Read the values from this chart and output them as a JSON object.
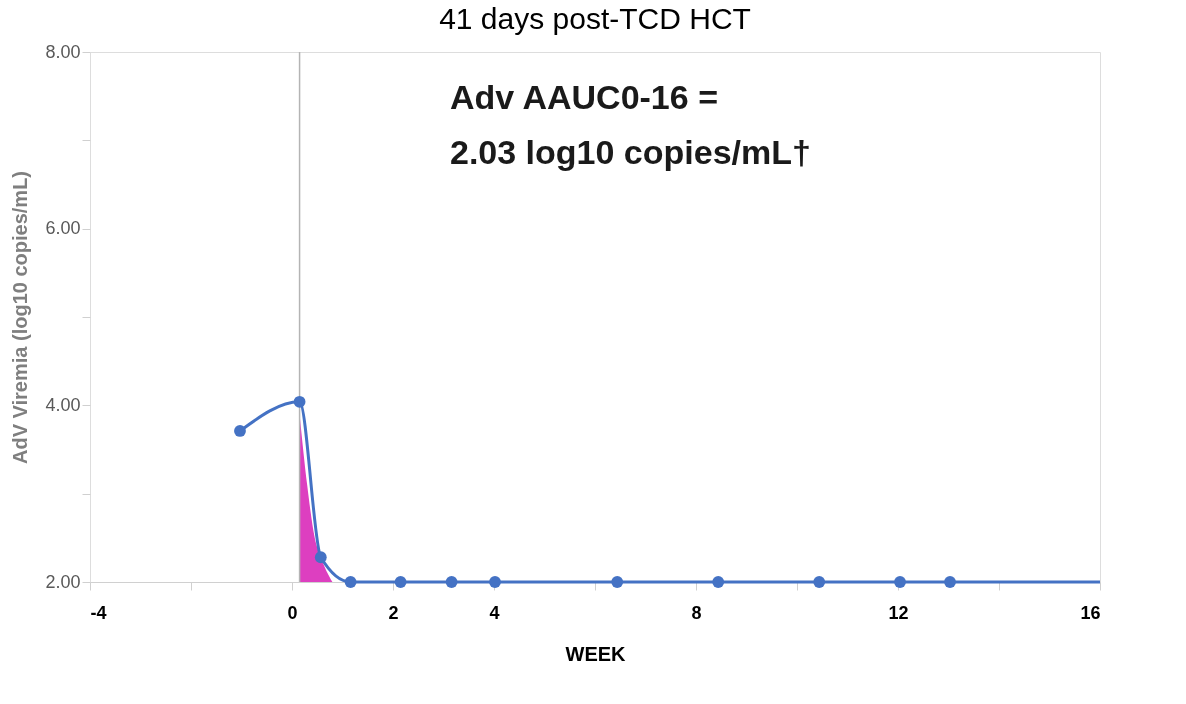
{
  "chart_data": {
    "type": "line",
    "title": "41 days post-TCD HCT",
    "xlabel": "WEEK",
    "ylabel": "AdV Viremia (log10 copies/mL)",
    "annotations": [
      "Adv AAUC0-16 =",
      "2.03 log10 copies/mL†"
    ],
    "xlim": [
      -4,
      16
    ],
    "xticks": [
      -4,
      {
        "value": -2,
        "label": null
      },
      0,
      2,
      4,
      {
        "value": 6,
        "label": null
      },
      8,
      {
        "value": 10,
        "label": null
      },
      12,
      {
        "value": 14,
        "label": null
      },
      16
    ],
    "ylim": [
      2,
      8
    ],
    "yticks": [
      {
        "value": 2,
        "label": "2.00"
      },
      {
        "value": 3,
        "label": null
      },
      {
        "value": 4,
        "label": "4.00"
      },
      {
        "value": 5,
        "label": null
      },
      {
        "value": 6,
        "label": "6.00"
      },
      {
        "value": 7,
        "label": null
      },
      {
        "value": 8,
        "label": "8.00"
      }
    ],
    "grid": false,
    "ref_lines": [
      {
        "axis": "x",
        "value": 0.15,
        "color": "#b4b4b4"
      }
    ],
    "series": [
      {
        "type": "area",
        "color": "#dd3fc0",
        "x": [
          0.15,
          0.3,
          0.45,
          0.57,
          0.8
        ],
        "values": [
          3.9,
          3.1,
          2.5,
          2.28,
          2.0
        ]
      },
      {
        "color": "#4472c4",
        "marker": "circle",
        "x": [
          -1.03,
          0.15,
          0.57,
          1.16,
          2.15,
          3.16,
          4.02,
          6.44,
          8.44,
          10.44,
          12.04,
          13.03
        ],
        "values": [
          3.71,
          4.04,
          2.28,
          2.0,
          2.0,
          2.0,
          2.0,
          2.0,
          2.0,
          2.0,
          2.0,
          2.0
        ]
      },
      {
        "type": "line",
        "color": "#4472c4",
        "marker": "none",
        "x": [
          13.03,
          16
        ],
        "values": [
          2.0,
          2.0
        ]
      }
    ]
  }
}
